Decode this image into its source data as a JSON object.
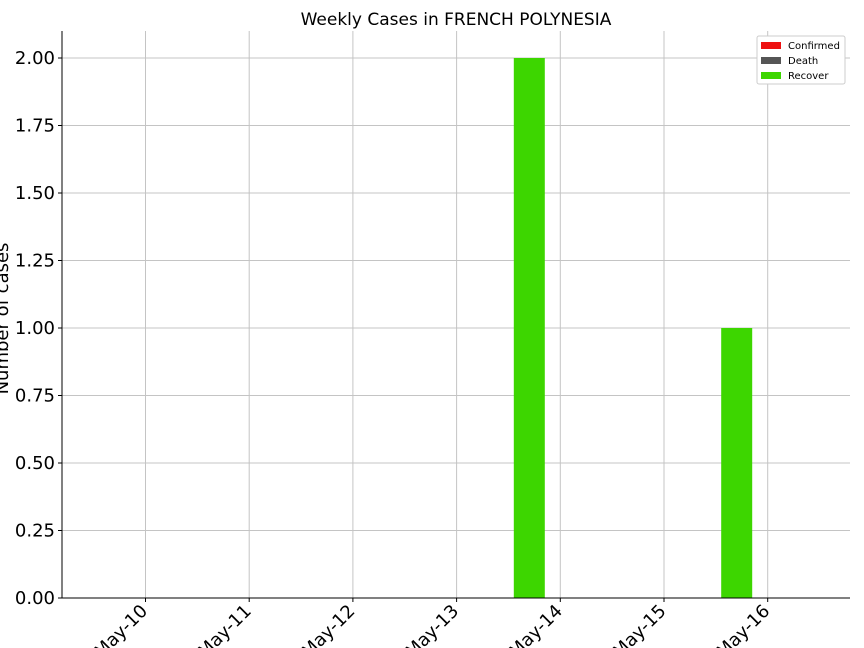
{
  "chart_data": {
    "type": "bar",
    "title": "Weekly Cases in FRENCH POLYNESIA",
    "xlabel": "",
    "ylabel": "Number of cases",
    "categories": [
      "May-10",
      "May-11",
      "May-12",
      "May-13",
      "May-14",
      "May-15",
      "May-16"
    ],
    "ylim": [
      0,
      2.1
    ],
    "yticks": [
      "0.00",
      "0.25",
      "0.50",
      "0.75",
      "1.00",
      "1.25",
      "1.50",
      "1.75",
      "2.00"
    ],
    "grid": true,
    "legend_position": "top-right",
    "series": [
      {
        "name": "Confirmed",
        "color": "#ee1111",
        "values": [
          0,
          0,
          0,
          0,
          0,
          0,
          0
        ]
      },
      {
        "name": "Death",
        "color": "#555555",
        "values": [
          0,
          0,
          0,
          0,
          0,
          0,
          0
        ]
      },
      {
        "name": "Recover",
        "color": "#3dd600",
        "values": [
          0,
          0,
          0,
          0,
          2,
          0,
          1
        ]
      }
    ]
  }
}
